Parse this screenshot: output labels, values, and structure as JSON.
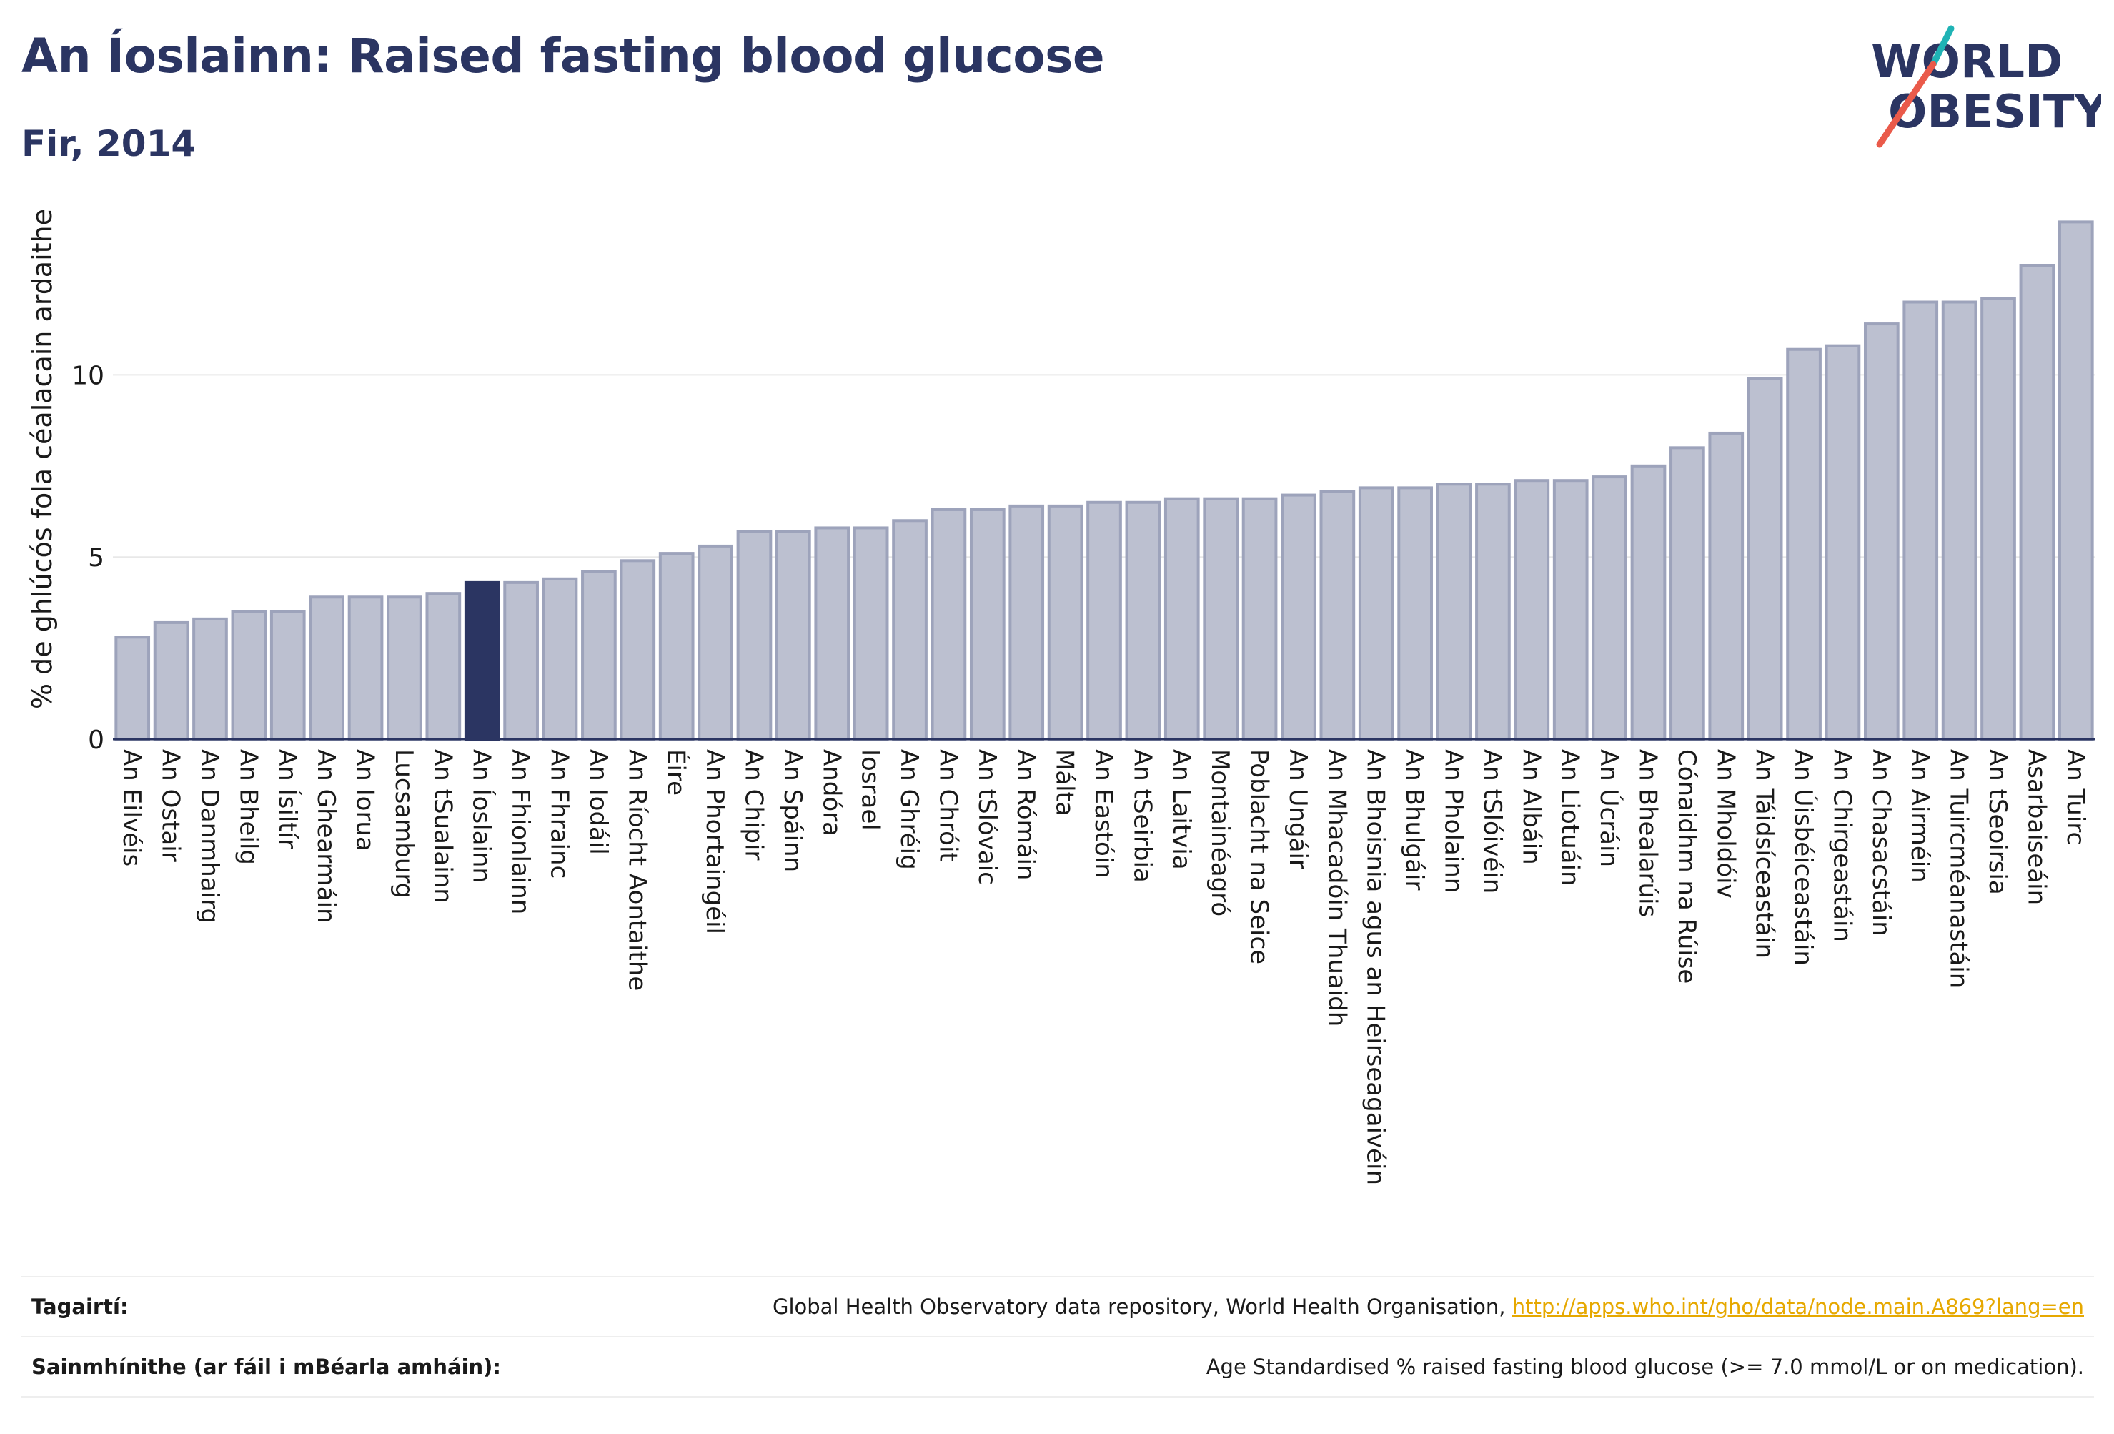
{
  "title": "An Íoslainn: Raised fasting blood glucose",
  "subtitle": "Fir, 2014",
  "logo": {
    "line1": "WORLD",
    "line2": "OBESITY"
  },
  "colors": {
    "bar_fill": "#bcc0d0",
    "bar_stroke": "#9da3bb",
    "highlight": "#2b3562",
    "grid": "#e8e8e8",
    "axis": "#2b3562",
    "logo_teal": "#1fb3b5",
    "logo_red": "#ea5a4a"
  },
  "chart_data": {
    "type": "bar",
    "title": "An Íoslainn: Raised fasting blood glucose",
    "subtitle": "Fir, 2014",
    "xlabel": "",
    "ylabel": "% de ghlúcós fola céalacain ardaithe",
    "ylim": [
      0,
      14.6
    ],
    "yticks": [
      0,
      5,
      10
    ],
    "grid": true,
    "highlight": "An Íoslainn",
    "categories": [
      "An Eilvéis",
      "An Ostair",
      "An Danmhairg",
      "An Bheilg",
      "An Ísiltír",
      "An Ghearmáin",
      "An Iorua",
      "Lucsamburg",
      "An tSualainn",
      "An Íoslainn",
      "An Fhionlainn",
      "An Fhrainc",
      "An Iodáil",
      "An Ríocht Aontaithe",
      "Éire",
      "An Phortaingéil",
      "An Chipir",
      "An Spáinn",
      "Andóra",
      "Iosrael",
      "An Ghréig",
      "An Chróit",
      "An tSlóvaic",
      "An Rómáin",
      "Málta",
      "An Eastóin",
      "An tSeirbia",
      "An Laitvia",
      "Montainéagró",
      "Poblacht na Seice",
      "An Ungáir",
      "An Mhacadóin Thuaidh",
      "An Bhoisnia agus an Heirseagaivéin",
      "An Bhulgáir",
      "An Pholainn",
      "An tSlóivéin",
      "An Albáin",
      "An Liotuáin",
      "An Úcráin",
      "An Bhealarúis",
      "Cónaidhm na Rúise",
      "An Mholdóiv",
      "An Táidsíceastáin",
      "An Úisbéiceastáin",
      "An Chirgeastáin",
      "An Chasacstáin",
      "An Airméin",
      "An Tuircméanastáin",
      "An tSeoirsia",
      "Asarbaiseáin",
      "An Tuirc"
    ],
    "values": [
      2.8,
      3.2,
      3.3,
      3.5,
      3.5,
      3.9,
      3.9,
      3.9,
      4.0,
      4.3,
      4.3,
      4.4,
      4.6,
      4.9,
      5.1,
      5.3,
      5.7,
      5.7,
      5.8,
      5.8,
      6.0,
      6.3,
      6.3,
      6.4,
      6.4,
      6.5,
      6.5,
      6.6,
      6.6,
      6.6,
      6.7,
      6.8,
      6.9,
      6.9,
      7.0,
      7.0,
      7.1,
      7.1,
      7.2,
      7.5,
      8.0,
      8.4,
      9.9,
      10.7,
      10.8,
      11.4,
      12.0,
      12.0,
      12.1,
      13.0,
      14.2
    ]
  },
  "footer": {
    "references_label": "Tagairtí:",
    "references_text": "Global Health Observatory data repository, World Health Organisation,",
    "references_link": "http://apps.who.int/gho/data/node.main.A869?lang=en",
    "definitions_label": "Sainmhínithe (ar fáil i mBéarla amháin):",
    "definitions_text": "Age Standardised % raised fasting blood glucose (>= 7.0 mmol/L or on medication)."
  }
}
